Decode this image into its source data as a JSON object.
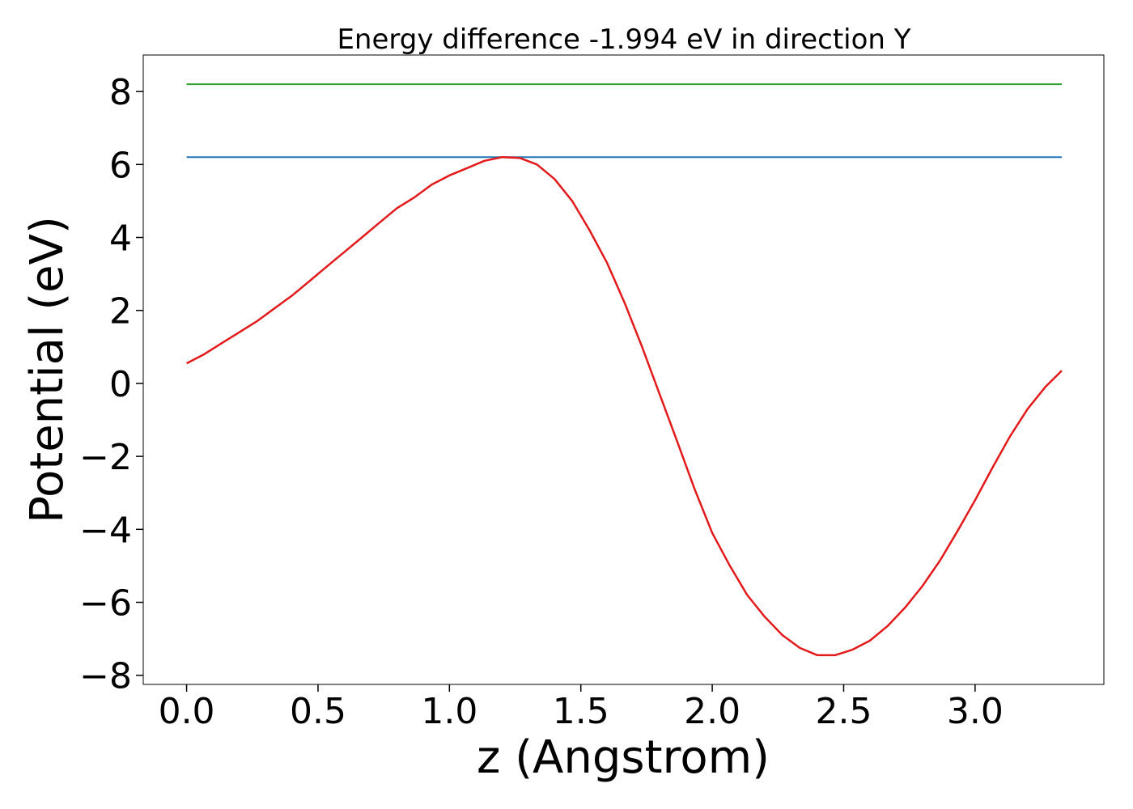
{
  "chart_data": {
    "type": "line",
    "title": "Energy difference -1.994 eV in direction Y",
    "xlabel": "z (Angstrom)",
    "ylabel": "Potential (eV)",
    "xlim": [
      -0.165,
      3.49
    ],
    "ylim": [
      -8.25,
      9.0
    ],
    "x_ticks": [
      0.0,
      0.5,
      1.0,
      1.5,
      2.0,
      2.5,
      3.0
    ],
    "x_tick_labels": [
      "0.0",
      "0.5",
      "1.0",
      "1.5",
      "2.0",
      "2.5",
      "3.0"
    ],
    "y_ticks": [
      -8,
      -6,
      -4,
      -2,
      0,
      2,
      4,
      6,
      8
    ],
    "y_tick_labels": [
      "−8",
      "−6",
      "−4",
      "−2",
      "0",
      "2",
      "4",
      "6",
      "8"
    ],
    "grid": false,
    "legend": "none",
    "series": [
      {
        "color": "#e31a1c",
        "x": [
          0.0,
          0.067,
          0.133,
          0.2,
          0.267,
          0.333,
          0.4,
          0.467,
          0.533,
          0.6,
          0.667,
          0.733,
          0.8,
          0.867,
          0.933,
          1.0,
          1.067,
          1.133,
          1.2,
          1.267,
          1.333,
          1.4,
          1.467,
          1.533,
          1.6,
          1.667,
          1.733,
          1.8,
          1.867,
          1.933,
          2.0,
          2.067,
          2.133,
          2.2,
          2.267,
          2.333,
          2.4,
          2.467,
          2.533,
          2.6,
          2.667,
          2.733,
          2.8,
          2.867,
          2.933,
          3.0,
          3.067,
          3.133,
          3.2,
          3.267,
          3.33
        ],
        "y": [
          0.55,
          0.8,
          1.1,
          1.4,
          1.7,
          2.05,
          2.4,
          2.8,
          3.2,
          3.6,
          4.0,
          4.4,
          4.8,
          5.1,
          5.45,
          5.7,
          5.9,
          6.1,
          6.2,
          6.18,
          6.0,
          5.6,
          5.0,
          4.2,
          3.3,
          2.2,
          1.0,
          -0.3,
          -1.6,
          -2.9,
          -4.1,
          -5.0,
          -5.8,
          -6.4,
          -6.9,
          -7.25,
          -7.45,
          -7.45,
          -7.3,
          -7.05,
          -6.65,
          -6.15,
          -5.55,
          -4.85,
          -4.05,
          -3.2,
          -2.3,
          -1.45,
          -0.7,
          -0.1,
          0.35
        ]
      },
      {
        "color": "#1f77b4",
        "x": [
          0.0,
          3.33
        ],
        "y": [
          6.2,
          6.2
        ]
      },
      {
        "color": "#2ca02c",
        "x": [
          0.0,
          3.33
        ],
        "y": [
          8.2,
          8.2
        ]
      }
    ]
  }
}
